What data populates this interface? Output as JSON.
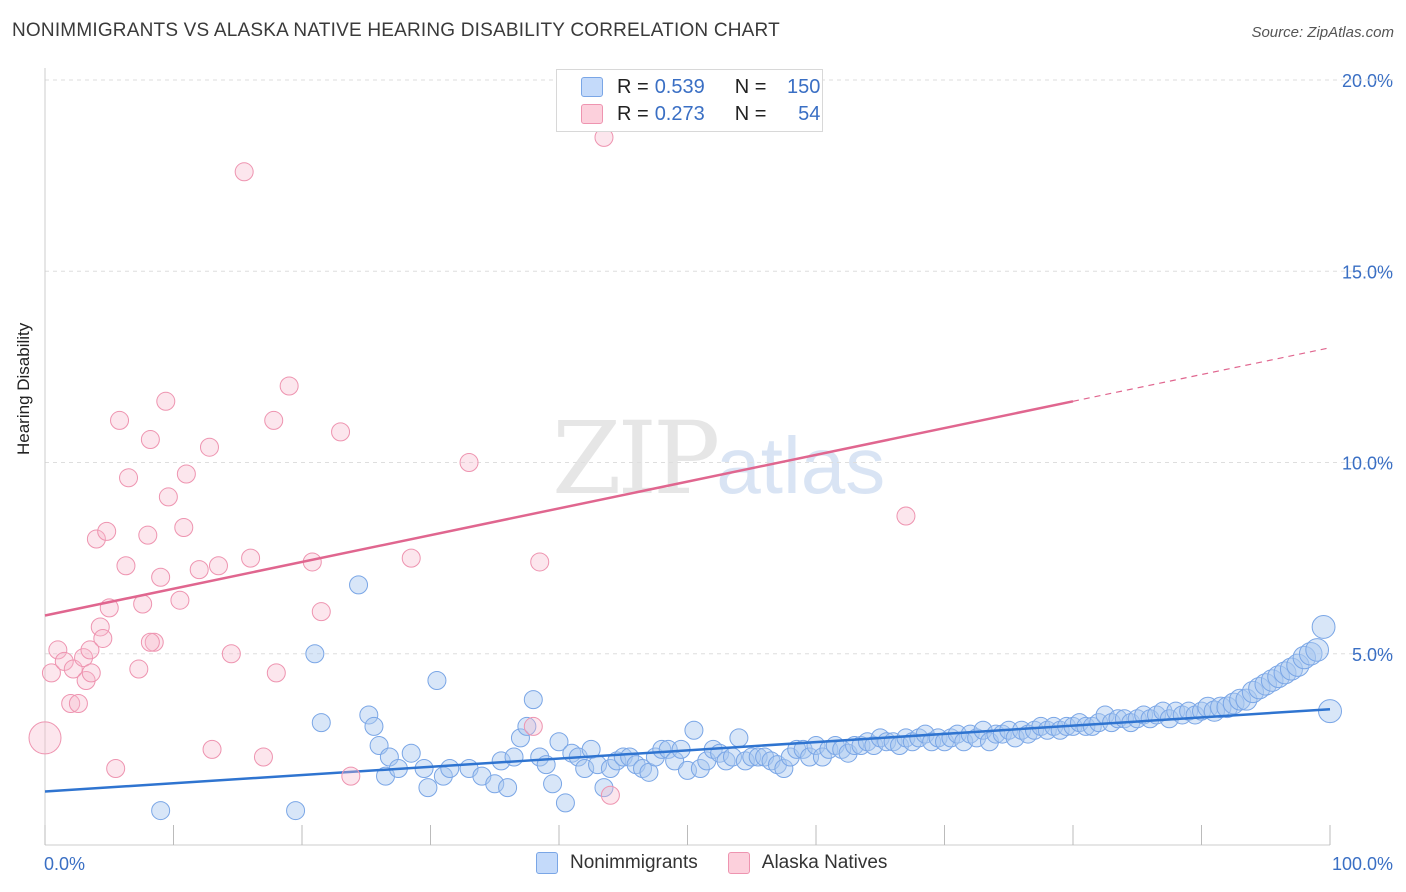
{
  "title": "NONIMMIGRANTS VS ALASKA NATIVE HEARING DISABILITY CORRELATION CHART",
  "source": "Source: ZipAtlas.com",
  "watermark": {
    "zip": "ZIP",
    "atlas": "atlas"
  },
  "stats": [
    {
      "r_label": "R =",
      "r_value": "0.539",
      "n_label": "N =",
      "n_value": "150",
      "color": "#a8c8f0"
    },
    {
      "r_label": "R =",
      "r_value": "0.273",
      "n_label": "N =",
      "n_value": "54",
      "color": "#f7b8cb"
    }
  ],
  "legend": [
    {
      "label": "Nonimmigrants",
      "color": "#a8c8f0"
    },
    {
      "label": "Alaska Natives",
      "color": "#f7b8cb"
    }
  ],
  "chart_data": {
    "type": "scatter",
    "title": "NONIMMIGRANTS VS ALASKA NATIVE HEARING DISABILITY CORRELATION CHART",
    "xlabel": "",
    "ylabel": "Hearing Disability",
    "xlim": [
      0,
      100
    ],
    "ylim": [
      0,
      20
    ],
    "x_tick_labels": [
      "0.0%",
      "100.0%"
    ],
    "y_ticks": [
      5,
      10,
      15,
      20
    ],
    "y_tick_labels": [
      "5.0%",
      "10.0%",
      "15.0%",
      "20.0%"
    ],
    "grid": true,
    "series": [
      {
        "name": "Nonimmigrants",
        "color": "#a8c8f0",
        "trend": {
          "x": [
            0,
            100
          ],
          "y": [
            1.4,
            3.55
          ]
        },
        "points": [
          [
            9,
            0.9
          ],
          [
            19.5,
            0.9
          ],
          [
            21,
            5
          ],
          [
            21.5,
            3.2
          ],
          [
            24.4,
            6.8
          ],
          [
            25.2,
            3.4
          ],
          [
            25.6,
            3.1
          ],
          [
            26,
            2.6
          ],
          [
            26.5,
            1.8
          ],
          [
            26.8,
            2.3
          ],
          [
            27.5,
            2
          ],
          [
            28.5,
            2.4
          ],
          [
            29.5,
            2
          ],
          [
            29.8,
            1.5
          ],
          [
            30.5,
            4.3
          ],
          [
            31,
            1.8
          ],
          [
            31.5,
            2
          ],
          [
            33,
            2
          ],
          [
            34,
            1.8
          ],
          [
            35,
            1.6
          ],
          [
            35.5,
            2.2
          ],
          [
            36,
            1.5
          ],
          [
            36.5,
            2.3
          ],
          [
            37,
            2.8
          ],
          [
            37.5,
            3.1
          ],
          [
            38,
            3.8
          ],
          [
            38.5,
            2.3
          ],
          [
            39,
            2.1
          ],
          [
            39.5,
            1.6
          ],
          [
            40,
            2.7
          ],
          [
            40.5,
            1.1
          ],
          [
            41,
            2.4
          ],
          [
            41.5,
            2.3
          ],
          [
            42,
            2
          ],
          [
            42.5,
            2.5
          ],
          [
            43,
            2.1
          ],
          [
            43.5,
            1.5
          ],
          [
            44,
            2
          ],
          [
            44.5,
            2.2
          ],
          [
            45,
            2.3
          ],
          [
            45.5,
            2.3
          ],
          [
            46,
            2.1
          ],
          [
            46.5,
            2
          ],
          [
            47,
            1.9
          ],
          [
            47.5,
            2.3
          ],
          [
            48,
            2.5
          ],
          [
            48.5,
            2.5
          ],
          [
            49,
            2.2
          ],
          [
            49.5,
            2.5
          ],
          [
            50,
            1.95
          ],
          [
            50.5,
            3
          ],
          [
            51,
            2
          ],
          [
            51.5,
            2.2
          ],
          [
            52,
            2.5
          ],
          [
            52.5,
            2.4
          ],
          [
            53,
            2.2
          ],
          [
            53.5,
            2.3
          ],
          [
            54,
            2.8
          ],
          [
            54.5,
            2.2
          ],
          [
            55,
            2.3
          ],
          [
            55.5,
            2.3
          ],
          [
            56,
            2.3
          ],
          [
            56.5,
            2.2
          ],
          [
            57,
            2.1
          ],
          [
            57.5,
            2
          ],
          [
            58,
            2.3
          ],
          [
            58.5,
            2.5
          ],
          [
            59,
            2.5
          ],
          [
            59.5,
            2.3
          ],
          [
            60,
            2.6
          ],
          [
            60.5,
            2.3
          ],
          [
            61,
            2.5
          ],
          [
            61.5,
            2.6
          ],
          [
            62,
            2.5
          ],
          [
            62.5,
            2.4
          ],
          [
            63,
            2.6
          ],
          [
            63.5,
            2.6
          ],
          [
            64,
            2.7
          ],
          [
            64.5,
            2.6
          ],
          [
            65,
            2.8
          ],
          [
            65.5,
            2.7
          ],
          [
            66,
            2.7
          ],
          [
            66.5,
            2.6
          ],
          [
            67,
            2.8
          ],
          [
            67.5,
            2.7
          ],
          [
            68,
            2.8
          ],
          [
            68.5,
            2.9
          ],
          [
            69,
            2.7
          ],
          [
            69.5,
            2.8
          ],
          [
            70,
            2.7
          ],
          [
            70.5,
            2.8
          ],
          [
            71,
            2.9
          ],
          [
            71.5,
            2.7
          ],
          [
            72,
            2.9
          ],
          [
            72.5,
            2.8
          ],
          [
            73,
            3
          ],
          [
            73.5,
            2.7
          ],
          [
            74,
            2.9
          ],
          [
            74.5,
            2.9
          ],
          [
            75,
            3
          ],
          [
            75.5,
            2.8
          ],
          [
            76,
            3
          ],
          [
            76.5,
            2.9
          ],
          [
            77,
            3
          ],
          [
            77.5,
            3.1
          ],
          [
            78,
            3
          ],
          [
            78.5,
            3.1
          ],
          [
            79,
            3
          ],
          [
            79.5,
            3.1
          ],
          [
            80,
            3.1
          ],
          [
            80.5,
            3.2
          ],
          [
            81,
            3.1
          ],
          [
            81.5,
            3.1
          ],
          [
            82,
            3.2
          ],
          [
            82.5,
            3.4
          ],
          [
            83,
            3.2
          ],
          [
            83.5,
            3.3
          ],
          [
            84,
            3.3
          ],
          [
            84.5,
            3.2
          ],
          [
            85,
            3.3
          ],
          [
            85.5,
            3.4
          ],
          [
            86,
            3.3
          ],
          [
            86.5,
            3.4
          ],
          [
            87,
            3.5
          ],
          [
            87.5,
            3.3
          ],
          [
            88,
            3.5
          ],
          [
            88.5,
            3.4
          ],
          [
            89,
            3.5
          ],
          [
            89.5,
            3.4
          ],
          [
            90,
            3.5
          ],
          [
            90.5,
            3.6
          ],
          [
            91,
            3.5
          ],
          [
            91.5,
            3.6
          ],
          [
            92,
            3.6
          ],
          [
            92.5,
            3.7
          ],
          [
            93,
            3.8
          ],
          [
            93.5,
            3.8
          ],
          [
            94,
            4
          ],
          [
            94.5,
            4.1
          ],
          [
            95,
            4.2
          ],
          [
            95.5,
            4.3
          ],
          [
            96,
            4.4
          ],
          [
            96.5,
            4.5
          ],
          [
            97,
            4.6
          ],
          [
            97.5,
            4.7
          ],
          [
            98,
            4.9
          ],
          [
            98.5,
            5
          ],
          [
            99,
            5.1
          ],
          [
            99.5,
            5.7
          ],
          [
            100,
            3.5
          ]
        ]
      },
      {
        "name": "Alaska Natives",
        "color": "#f7b8cb",
        "trend": {
          "x": [
            0,
            80
          ],
          "y": [
            6.0,
            11.6
          ]
        },
        "trend_dashed": {
          "x": [
            80,
            100
          ],
          "y": [
            11.6,
            13.0
          ]
        },
        "points": [
          [
            0,
            2.8
          ],
          [
            0.5,
            4.5
          ],
          [
            1,
            5.1
          ],
          [
            1.5,
            4.8
          ],
          [
            2,
            3.7
          ],
          [
            2.2,
            4.6
          ],
          [
            2.6,
            3.7
          ],
          [
            3,
            4.9
          ],
          [
            3.2,
            4.3
          ],
          [
            3.5,
            5.1
          ],
          [
            3.6,
            4.5
          ],
          [
            4,
            8
          ],
          [
            4.3,
            5.7
          ],
          [
            4.5,
            5.4
          ],
          [
            4.8,
            8.2
          ],
          [
            5,
            6.2
          ],
          [
            5.5,
            2
          ],
          [
            5.8,
            11.1
          ],
          [
            6.3,
            7.3
          ],
          [
            6.5,
            9.6
          ],
          [
            7.3,
            4.6
          ],
          [
            7.6,
            6.3
          ],
          [
            8,
            8.1
          ],
          [
            8.2,
            10.6
          ],
          [
            8.5,
            5.3
          ],
          [
            9,
            7
          ],
          [
            9.4,
            11.6
          ],
          [
            9.6,
            9.1
          ],
          [
            10.5,
            6.4
          ],
          [
            10.8,
            8.3
          ],
          [
            11,
            9.7
          ],
          [
            12,
            7.2
          ],
          [
            12.8,
            10.4
          ],
          [
            13,
            2.5
          ],
          [
            13.5,
            7.3
          ],
          [
            14.5,
            5
          ],
          [
            15.5,
            17.6
          ],
          [
            16,
            7.5
          ],
          [
            17,
            2.3
          ],
          [
            17.8,
            11.1
          ],
          [
            18,
            4.5
          ],
          [
            19,
            12
          ],
          [
            20.8,
            7.4
          ],
          [
            21.5,
            6.1
          ],
          [
            23,
            10.8
          ],
          [
            23.8,
            1.8
          ],
          [
            28.5,
            7.5
          ],
          [
            38,
            3.1
          ],
          [
            38.5,
            7.4
          ],
          [
            43.5,
            18.5
          ],
          [
            44,
            1.3
          ],
          [
            33,
            10
          ],
          [
            67,
            8.6
          ],
          [
            8.2,
            5.3
          ]
        ]
      }
    ]
  }
}
